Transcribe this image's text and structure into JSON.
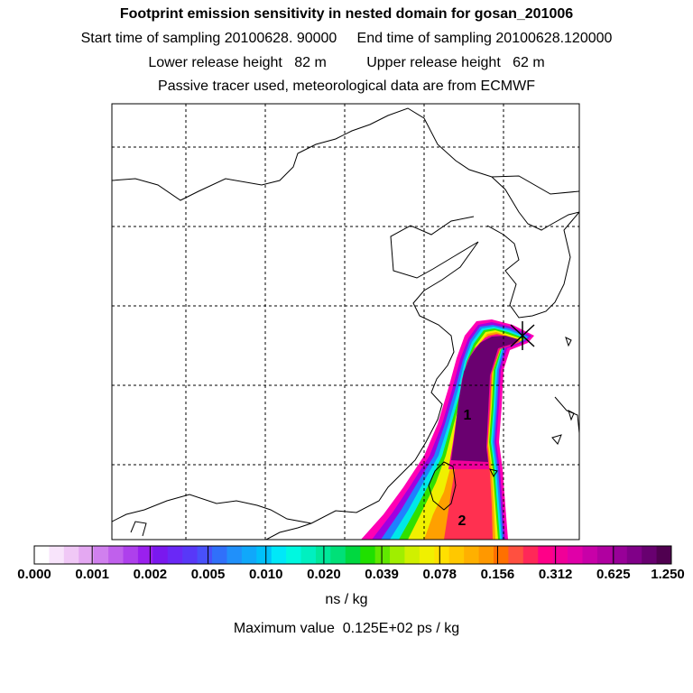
{
  "header": {
    "title": "Footprint emission sensitivity in nested domain for gosan_201006",
    "sampling_line": "Start time of sampling 20100628. 90000     End time of sampling 20100628.120000",
    "height_line": "Lower release height   82 m          Upper release height   62 m",
    "tracer_line": "Passive tracer used, meteorological data are from ECMWF"
  },
  "map": {
    "release_marker_icon": "x-cross-icon",
    "labels": [
      "1",
      "2"
    ]
  },
  "colorbar": {
    "tick_labels": [
      "0.000",
      "0.001",
      "0.002",
      "0.005",
      "0.010",
      "0.020",
      "0.039",
      "0.078",
      "0.156",
      "0.312",
      "0.625",
      "1.250"
    ],
    "colors": [
      "#ffffff",
      "#f8e4fb",
      "#f0c8f6",
      "#e4a8f2",
      "#d080ee",
      "#c060ec",
      "#ae40ec",
      "#9a20ee",
      "#7a18ee",
      "#6a28f6",
      "#5838f8",
      "#4850fa",
      "#3070fa",
      "#2090fa",
      "#10a8fa",
      "#00c0fa",
      "#00e8f8",
      "#00f8e0",
      "#00f0c0",
      "#00e89a",
      "#00e078",
      "#00d840",
      "#20e000",
      "#60e800",
      "#a0ee00",
      "#d0f000",
      "#f0f000",
      "#ffe000",
      "#ffc800",
      "#ffb000",
      "#ff9800",
      "#ff7000",
      "#ff5040",
      "#ff2858",
      "#ff0088",
      "#f00098",
      "#e000a8",
      "#c800a8",
      "#b000a0",
      "#980098",
      "#800088",
      "#680070",
      "#500050"
    ],
    "units": "ns / kg",
    "max_value": "Maximum value  0.125E+02 ps / kg"
  }
}
